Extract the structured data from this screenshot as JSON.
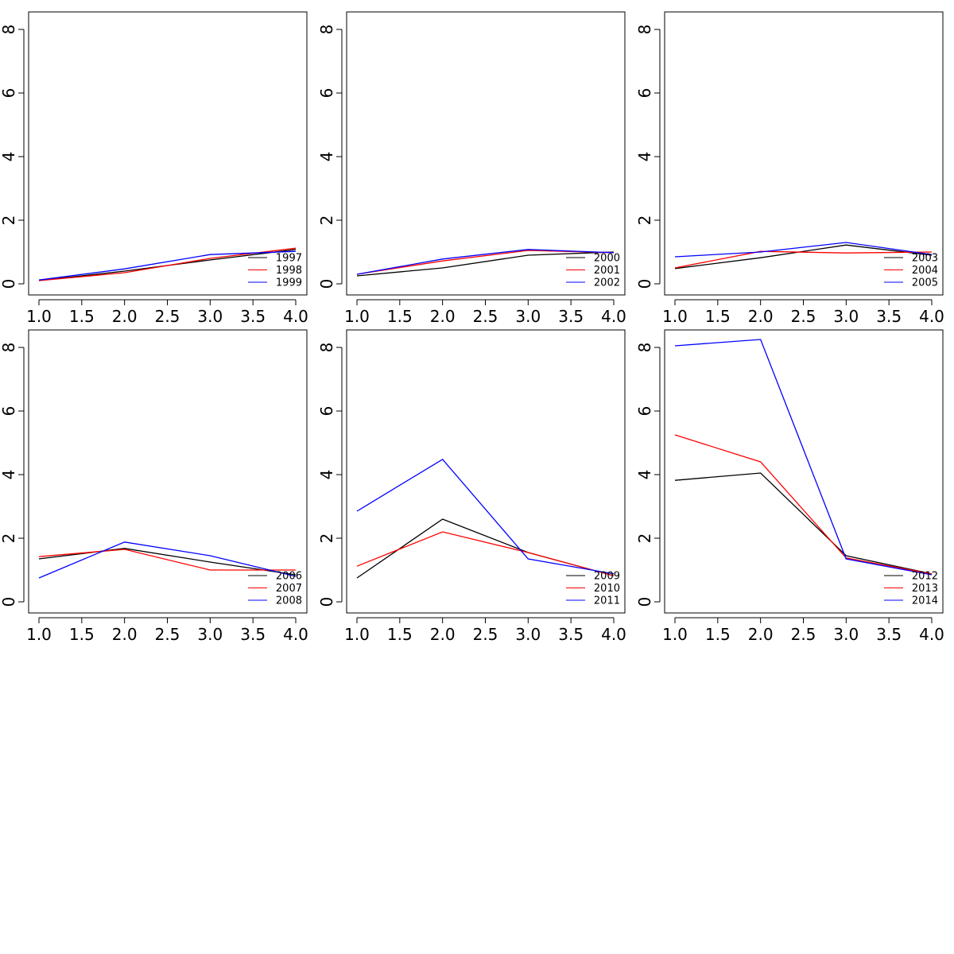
{
  "chart_data": [
    {
      "type": "line",
      "title": "",
      "xlabel": "",
      "ylabel": "",
      "x": [
        1,
        2,
        3,
        4
      ],
      "xlim": [
        0.9,
        4.1
      ],
      "ylim": [
        -0.3,
        8.6
      ],
      "xticks": [
        "1.0",
        "1.5",
        "2.0",
        "2.5",
        "3.0",
        "3.5",
        "4.0"
      ],
      "yticks": [
        "0",
        "2",
        "4",
        "6",
        "8"
      ],
      "grid": false,
      "legend_position": "bottom-right",
      "series": [
        {
          "name": "1997",
          "color": "#000000",
          "values": [
            0.1,
            0.4,
            0.75,
            1.08
          ]
        },
        {
          "name": "1998",
          "color": "#ff0000",
          "values": [
            0.1,
            0.35,
            0.8,
            1.12
          ]
        },
        {
          "name": "1999",
          "color": "#0000ff",
          "values": [
            0.12,
            0.47,
            0.92,
            1.02
          ]
        }
      ]
    },
    {
      "type": "line",
      "title": "",
      "xlabel": "",
      "ylabel": "",
      "x": [
        1,
        2,
        3,
        4
      ],
      "xlim": [
        0.9,
        4.1
      ],
      "ylim": [
        -0.3,
        8.6
      ],
      "xticks": [
        "1.0",
        "1.5",
        "2.0",
        "2.5",
        "3.0",
        "3.5",
        "4.0"
      ],
      "yticks": [
        "0",
        "2",
        "4",
        "6",
        "8"
      ],
      "grid": false,
      "legend_position": "bottom-right",
      "series": [
        {
          "name": "2000",
          "color": "#000000",
          "values": [
            0.25,
            0.5,
            0.9,
            1.0
          ]
        },
        {
          "name": "2001",
          "color": "#ff0000",
          "values": [
            0.3,
            0.72,
            1.05,
            0.98
          ]
        },
        {
          "name": "2002",
          "color": "#0000ff",
          "values": [
            0.3,
            0.78,
            1.08,
            0.98
          ]
        }
      ]
    },
    {
      "type": "line",
      "title": "",
      "xlabel": "",
      "ylabel": "",
      "x": [
        1,
        2,
        3,
        4
      ],
      "xlim": [
        0.9,
        4.1
      ],
      "ylim": [
        -0.3,
        8.6
      ],
      "xticks": [
        "1.0",
        "1.5",
        "2.0",
        "2.5",
        "3.0",
        "3.5",
        "4.0"
      ],
      "yticks": [
        "0",
        "2",
        "4",
        "6",
        "8"
      ],
      "grid": false,
      "legend_position": "bottom-right",
      "series": [
        {
          "name": "2003",
          "color": "#000000",
          "values": [
            0.48,
            0.82,
            1.22,
            0.9
          ]
        },
        {
          "name": "2004",
          "color": "#ff0000",
          "values": [
            0.5,
            1.02,
            0.97,
            1.0
          ]
        },
        {
          "name": "2005",
          "color": "#0000ff",
          "values": [
            0.85,
            1.0,
            1.3,
            0.92
          ]
        }
      ]
    },
    {
      "type": "line",
      "title": "",
      "xlabel": "",
      "ylabel": "",
      "x": [
        1,
        2,
        3,
        4
      ],
      "xlim": [
        0.9,
        4.1
      ],
      "ylim": [
        -0.3,
        8.6
      ],
      "xticks": [
        "1.0",
        "1.5",
        "2.0",
        "2.5",
        "3.0",
        "3.5",
        "4.0"
      ],
      "yticks": [
        "0",
        "2",
        "4",
        "6",
        "8"
      ],
      "grid": false,
      "legend_position": "bottom-right",
      "series": [
        {
          "name": "2006",
          "color": "#000000",
          "values": [
            1.35,
            1.68,
            1.25,
            0.85
          ]
        },
        {
          "name": "2007",
          "color": "#ff0000",
          "values": [
            1.42,
            1.65,
            1.0,
            1.0
          ]
        },
        {
          "name": "2008",
          "color": "#0000ff",
          "values": [
            0.75,
            1.88,
            1.45,
            0.8
          ]
        }
      ]
    },
    {
      "type": "line",
      "title": "",
      "xlabel": "",
      "ylabel": "",
      "x": [
        1,
        2,
        3,
        4
      ],
      "xlim": [
        0.9,
        4.1
      ],
      "ylim": [
        -0.3,
        8.6
      ],
      "xticks": [
        "1.0",
        "1.5",
        "2.0",
        "2.5",
        "3.0",
        "3.5",
        "4.0"
      ],
      "yticks": [
        "0",
        "2",
        "4",
        "6",
        "8"
      ],
      "grid": false,
      "legend_position": "bottom-right",
      "series": [
        {
          "name": "2009",
          "color": "#000000",
          "values": [
            0.75,
            2.6,
            1.55,
            0.82
          ]
        },
        {
          "name": "2010",
          "color": "#ff0000",
          "values": [
            1.12,
            2.2,
            1.55,
            0.82
          ]
        },
        {
          "name": "2011",
          "color": "#0000ff",
          "values": [
            2.85,
            4.48,
            1.35,
            0.88
          ]
        }
      ]
    },
    {
      "type": "line",
      "title": "",
      "xlabel": "",
      "ylabel": "",
      "x": [
        1,
        2,
        3,
        4
      ],
      "xlim": [
        0.9,
        4.1
      ],
      "ylim": [
        -0.3,
        8.6
      ],
      "xticks": [
        "1.0",
        "1.5",
        "2.0",
        "2.5",
        "3.0",
        "3.5",
        "4.0"
      ],
      "yticks": [
        "0",
        "2",
        "4",
        "6",
        "8"
      ],
      "grid": false,
      "legend_position": "bottom-right",
      "series": [
        {
          "name": "2012",
          "color": "#000000",
          "values": [
            3.82,
            4.05,
            1.45,
            0.88
          ]
        },
        {
          "name": "2013",
          "color": "#ff0000",
          "values": [
            5.25,
            4.4,
            1.38,
            0.88
          ]
        },
        {
          "name": "2014",
          "color": "#0000ff",
          "values": [
            8.05,
            8.25,
            1.35,
            0.85
          ]
        }
      ]
    }
  ]
}
